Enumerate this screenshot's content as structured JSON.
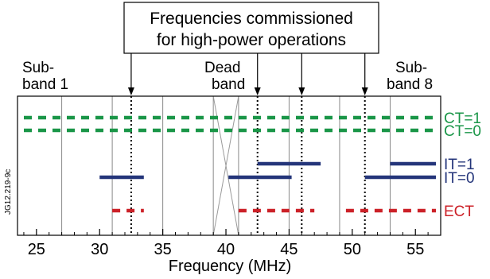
{
  "figure_id": "JG12.219-9c",
  "header": {
    "line1": "Frequencies commissioned",
    "line2": "for high-power operations"
  },
  "band_labels": {
    "sub_band_1": [
      "Sub-",
      "band 1"
    ],
    "dead_band": [
      "Dead",
      "band"
    ],
    "sub_band_8": [
      "Sub-",
      "band 8"
    ]
  },
  "x_axis": {
    "label": "Frequency (MHz)",
    "range": [
      23.5,
      57
    ],
    "ticks": [
      25,
      30,
      35,
      40,
      45,
      50,
      55
    ],
    "tick_labels": [
      "25",
      "30",
      "35",
      "40",
      "45",
      "50",
      "55"
    ]
  },
  "sub_band_boundaries_mhz": [
    27,
    31,
    35,
    39,
    41,
    45,
    49,
    53
  ],
  "dead_band_mhz": [
    39,
    41
  ],
  "commissioned_frequencies_mhz": [
    32.5,
    42.5,
    46,
    51
  ],
  "rows": [
    {
      "key": "ct1",
      "label": "CT=1",
      "color": "#1a9648",
      "style": "dashed",
      "segments": [
        [
          23.5,
          57
        ]
      ]
    },
    {
      "key": "ct0",
      "label": "CT=0",
      "color": "#1a9648",
      "style": "dashed",
      "segments": [
        [
          23.5,
          57
        ]
      ]
    },
    {
      "key": "it1",
      "label": "IT=1",
      "color": "#24357a",
      "style": "solid",
      "segments": [
        [
          42.5,
          47.5
        ],
        [
          53,
          57
        ]
      ]
    },
    {
      "key": "it0",
      "label": "IT=0",
      "color": "#24357a",
      "style": "solid",
      "segments": [
        [
          30,
          33.5
        ],
        [
          40.2,
          45.2
        ],
        [
          51,
          57
        ]
      ]
    },
    {
      "key": "ect",
      "label": "ECT",
      "color": "#cc2128",
      "style": "dashed",
      "segments": [
        [
          31,
          33.5
        ],
        [
          41,
          47
        ],
        [
          49.5,
          57
        ]
      ]
    }
  ]
}
